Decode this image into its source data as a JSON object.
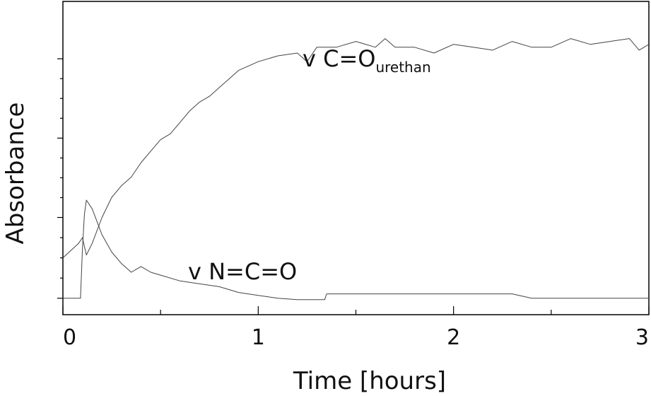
{
  "chart_data": {
    "type": "line",
    "xlabel": "Time [hours]",
    "ylabel": "Absorbance",
    "xlim": [
      0,
      3
    ],
    "ylim": [
      0,
      1
    ],
    "x_ticks": [
      {
        "value": 0,
        "label": "0"
      },
      {
        "value": 1,
        "label": "1"
      },
      {
        "value": 2,
        "label": "2"
      },
      {
        "value": 3,
        "label": "3"
      }
    ],
    "y_ticks_unlabeled": [
      0.03,
      0.31,
      0.585,
      0.86
    ],
    "grid": false,
    "series": [
      {
        "id": "co-urethane",
        "color": "#444444",
        "x": [
          0,
          0.08,
          0.1,
          0.12,
          0.15,
          0.2,
          0.25,
          0.3,
          0.35,
          0.4,
          0.45,
          0.5,
          0.55,
          0.6,
          0.65,
          0.7,
          0.75,
          0.8,
          0.85,
          0.9,
          1.0,
          1.1,
          1.2,
          1.25,
          1.3,
          1.4,
          1.5,
          1.6,
          1.65,
          1.7,
          1.8,
          1.9,
          2.0,
          2.1,
          2.2,
          2.3,
          2.4,
          2.5,
          2.6,
          2.7,
          2.8,
          2.9,
          2.95,
          3.0
        ],
        "y": [
          0.17,
          0.22,
          0.24,
          0.18,
          0.22,
          0.31,
          0.38,
          0.42,
          0.45,
          0.5,
          0.54,
          0.58,
          0.6,
          0.64,
          0.68,
          0.71,
          0.73,
          0.76,
          0.79,
          0.82,
          0.85,
          0.87,
          0.88,
          0.85,
          0.9,
          0.9,
          0.92,
          0.9,
          0.93,
          0.9,
          0.9,
          0.88,
          0.91,
          0.9,
          0.89,
          0.92,
          0.9,
          0.9,
          0.93,
          0.91,
          0.92,
          0.93,
          0.89,
          0.91
        ]
      },
      {
        "id": "nco",
        "color": "#444444",
        "x": [
          0,
          0.09,
          0.1,
          0.11,
          0.12,
          0.15,
          0.2,
          0.25,
          0.3,
          0.35,
          0.4,
          0.45,
          0.5,
          0.6,
          0.7,
          0.8,
          0.9,
          1.0,
          1.1,
          1.2,
          1.3,
          1.34,
          1.35,
          1.4,
          1.6,
          1.8,
          2.0,
          2.2,
          2.3,
          2.4,
          2.6,
          2.8,
          3.0
        ],
        "y": [
          0.03,
          0.03,
          0.2,
          0.32,
          0.37,
          0.34,
          0.25,
          0.19,
          0.15,
          0.12,
          0.14,
          0.12,
          0.11,
          0.09,
          0.08,
          0.07,
          0.05,
          0.04,
          0.03,
          0.025,
          0.025,
          0.025,
          0.045,
          0.045,
          0.045,
          0.045,
          0.045,
          0.045,
          0.045,
          0.03,
          0.03,
          0.03,
          0.03
        ]
      }
    ],
    "annotations": [
      {
        "id": "co",
        "prefix": "v  C=O",
        "subscript": "urethan"
      },
      {
        "id": "nco",
        "text": "v N=C=O"
      }
    ]
  }
}
